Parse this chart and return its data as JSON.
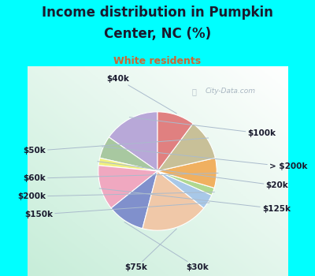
{
  "title_line1": "Income distribution in Pumpkin",
  "title_line2": "Center, NC (%)",
  "subtitle": "White residents",
  "bg_cyan": "#00ffff",
  "watermark": "City-Data.com",
  "labels": [
    "$100k",
    "> $200k",
    "$20k",
    "$125k",
    "$30k",
    "$75k",
    "$150k",
    "$200k",
    "$60k",
    "$50k",
    "$40k"
  ],
  "values": [
    15,
    6,
    2,
    12,
    10,
    18,
    4,
    2,
    8,
    11,
    10
  ],
  "colors": [
    "#b8a8d8",
    "#a8c8a0",
    "#f0f080",
    "#f0a8c0",
    "#8090cc",
    "#f0c8a8",
    "#a8c8e8",
    "#b0d890",
    "#f0b060",
    "#c8c098",
    "#e08080"
  ],
  "startangle": 90,
  "label_fontsize": 7.5,
  "title_fontsize": 12,
  "subtitle_fontsize": 9,
  "title_color": "#1a1a2e",
  "subtitle_color": "#cc6633"
}
